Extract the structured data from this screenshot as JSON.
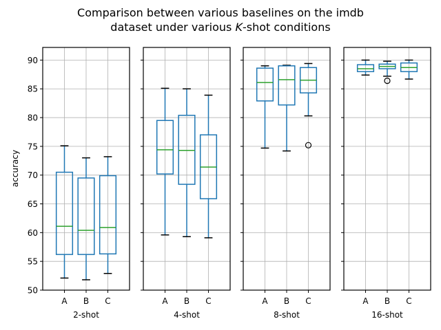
{
  "chart_data": {
    "type": "boxplot",
    "title_line1": "Comparison between various baselines on the imdb",
    "title_line2_pre": "dataset under various ",
    "title_line2_k": "K",
    "title_line2_post": "-shot conditions",
    "ylabel": "accuracy",
    "ylim": [
      50,
      92.2
    ],
    "yticks": [
      50,
      55,
      60,
      65,
      70,
      75,
      80,
      85,
      90
    ],
    "grid": true,
    "colors": {
      "box": "#1f77b4",
      "median": "#2ca02c",
      "whisker_cap": "#000000",
      "grid": "#b0b0b0",
      "frame": "#000000"
    },
    "panels": [
      {
        "xlabel": "2-shot",
        "categories": [
          "A",
          "B",
          "C"
        ],
        "boxes": [
          {
            "label": "A",
            "whislo": 52.1,
            "q1": 56.2,
            "med": 61.1,
            "q3": 70.5,
            "whishi": 75.1,
            "fliers": []
          },
          {
            "label": "B",
            "whislo": 51.8,
            "q1": 56.2,
            "med": 60.4,
            "q3": 69.5,
            "whishi": 73.0,
            "fliers": []
          },
          {
            "label": "C",
            "whislo": 52.9,
            "q1": 56.3,
            "med": 60.9,
            "q3": 69.9,
            "whishi": 73.2,
            "fliers": []
          }
        ]
      },
      {
        "xlabel": "4-shot",
        "categories": [
          "A",
          "B",
          "C"
        ],
        "boxes": [
          {
            "label": "A",
            "whislo": 59.6,
            "q1": 70.2,
            "med": 74.4,
            "q3": 79.5,
            "whishi": 85.1,
            "fliers": []
          },
          {
            "label": "B",
            "whislo": 59.3,
            "q1": 68.4,
            "med": 74.3,
            "q3": 80.4,
            "whishi": 85.0,
            "fliers": []
          },
          {
            "label": "C",
            "whislo": 59.1,
            "q1": 65.9,
            "med": 71.4,
            "q3": 77.0,
            "whishi": 83.9,
            "fliers": []
          }
        ]
      },
      {
        "xlabel": "8-shot",
        "categories": [
          "A",
          "B",
          "C"
        ],
        "boxes": [
          {
            "label": "A",
            "whislo": 74.7,
            "q1": 82.9,
            "med": 86.1,
            "q3": 88.6,
            "whishi": 89.0,
            "fliers": []
          },
          {
            "label": "B",
            "whislo": 74.2,
            "q1": 82.2,
            "med": 86.6,
            "q3": 89.0,
            "whishi": 89.1,
            "fliers": []
          },
          {
            "label": "C",
            "whislo": 80.3,
            "q1": 84.3,
            "med": 86.5,
            "q3": 88.7,
            "whishi": 89.4,
            "fliers": [
              75.2
            ]
          }
        ]
      },
      {
        "xlabel": "16-shot",
        "categories": [
          "A",
          "B",
          "C"
        ],
        "boxes": [
          {
            "label": "A",
            "whislo": 87.4,
            "q1": 88.0,
            "med": 88.5,
            "q3": 89.2,
            "whishi": 90.0,
            "fliers": []
          },
          {
            "label": "B",
            "whislo": 87.2,
            "q1": 88.5,
            "med": 88.9,
            "q3": 89.3,
            "whishi": 89.8,
            "fliers": [
              86.4
            ]
          },
          {
            "label": "C",
            "whislo": 86.7,
            "q1": 88.0,
            "med": 88.7,
            "q3": 89.5,
            "whishi": 90.0,
            "fliers": []
          }
        ]
      }
    ]
  }
}
